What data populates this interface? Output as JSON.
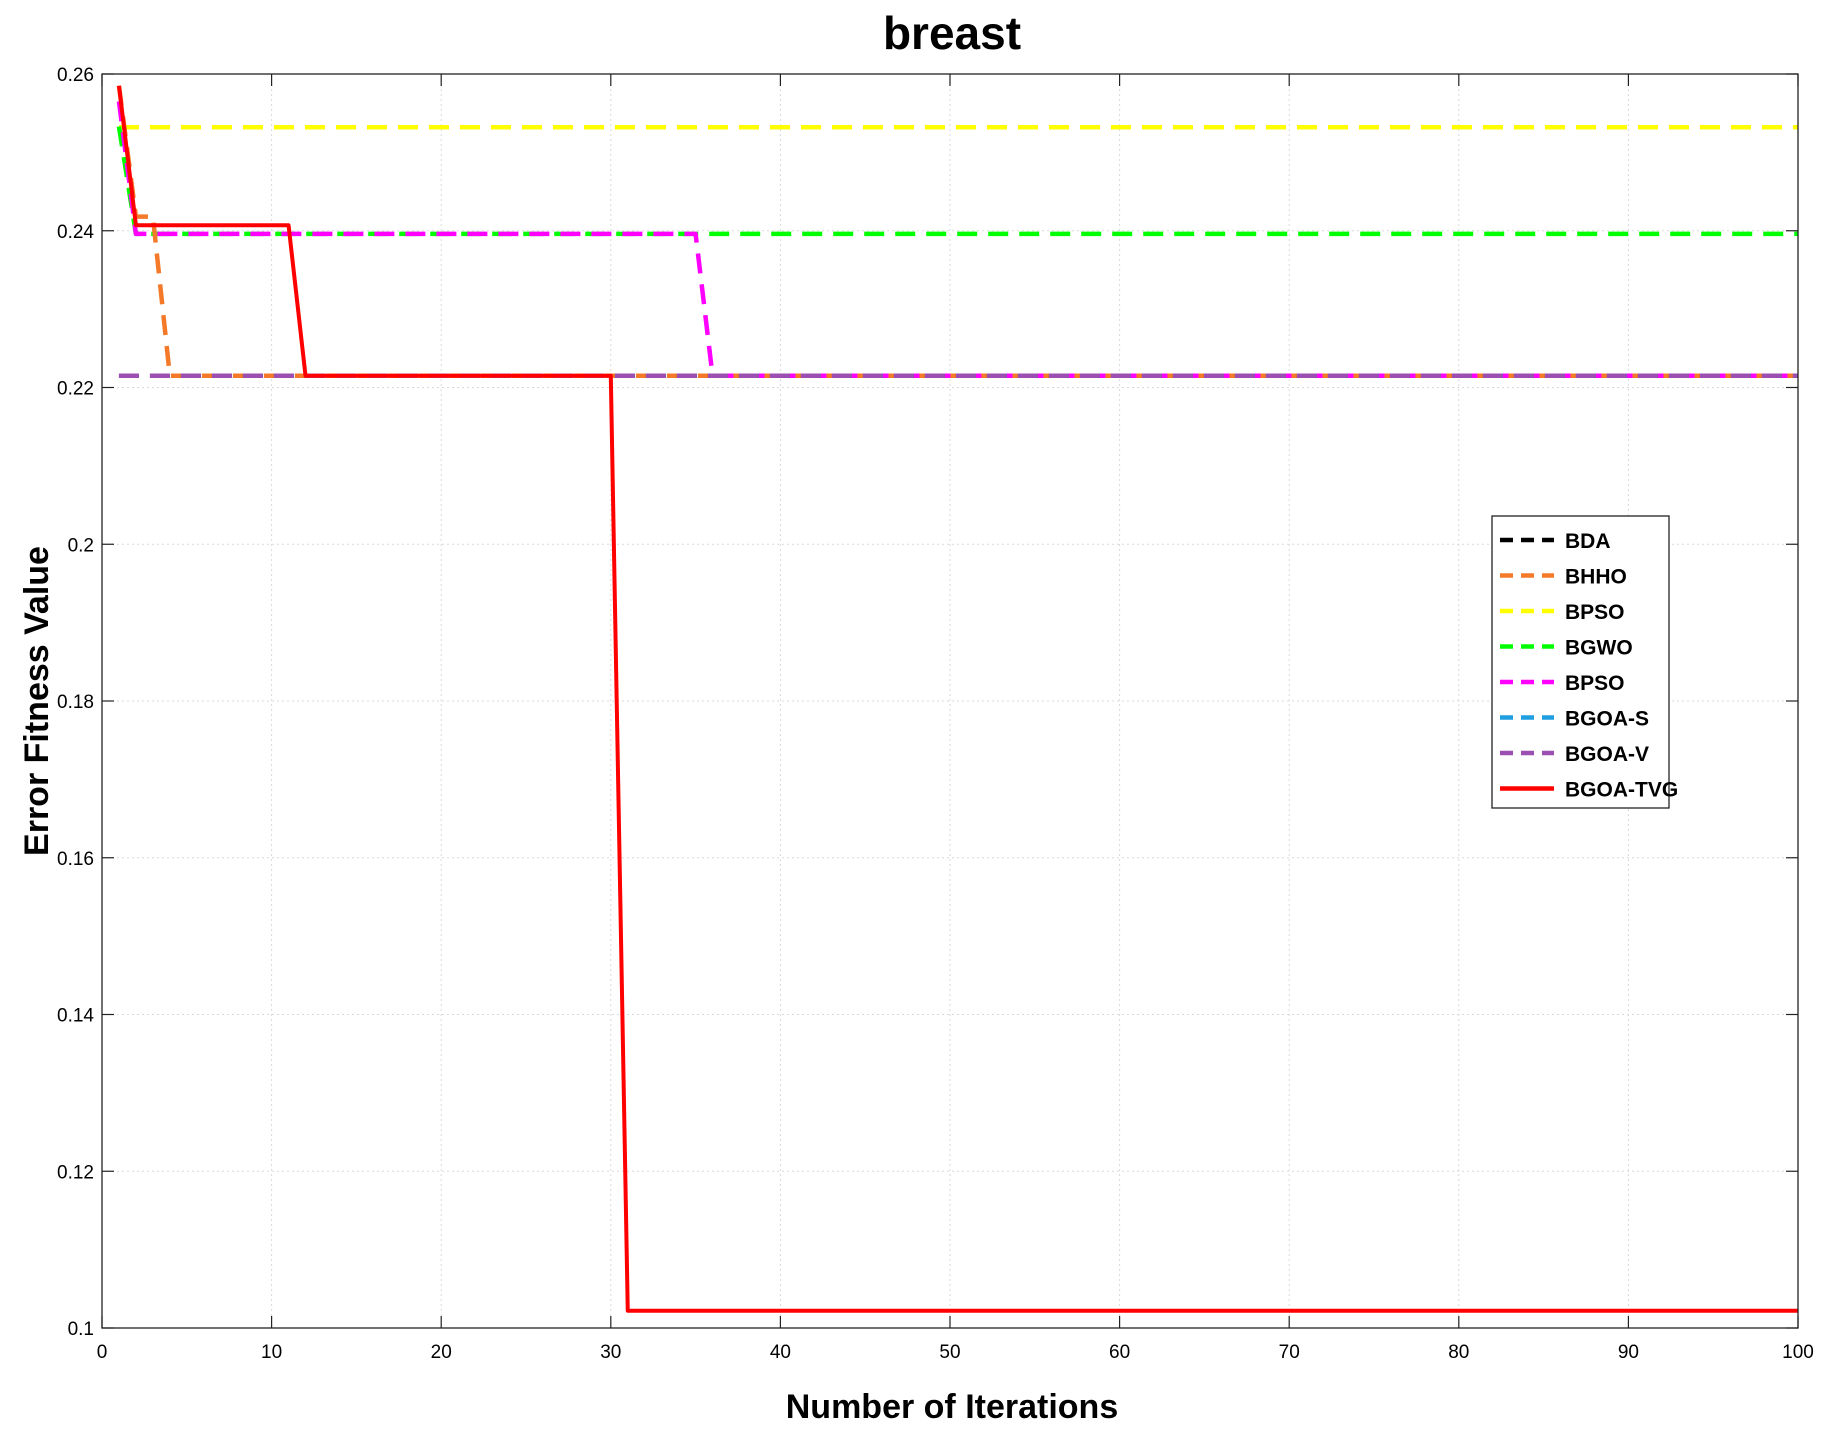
{
  "chart_data": {
    "type": "line",
    "title": "breast",
    "xlabel": "Number of Iterations",
    "ylabel": "Error Fitness Value",
    "xlim": [
      0,
      100
    ],
    "ylim": [
      0.1,
      0.26
    ],
    "xticks": [
      0,
      10,
      20,
      30,
      40,
      50,
      60,
      70,
      80,
      90,
      100
    ],
    "xtick_labels": [
      "0",
      "10",
      "20",
      "30",
      "40",
      "50",
      "60",
      "70",
      "80",
      "90",
      "100"
    ],
    "yticks": [
      0.1,
      0.12,
      0.14,
      0.16,
      0.18,
      0.2,
      0.22,
      0.24,
      0.26
    ],
    "ytick_labels": [
      "0.1",
      "0.12",
      "0.14",
      "0.16",
      "0.18",
      "0.2",
      "0.22",
      "0.24",
      "0.26"
    ],
    "grid": true,
    "legend_position": "right",
    "series": [
      {
        "name": "BDA",
        "color": "#000000",
        "style": "dashed",
        "points": [
          [
            1,
            0.2215
          ],
          [
            100,
            0.2215
          ]
        ]
      },
      {
        "name": "BHHO",
        "color": "#f47a2a",
        "style": "dashed",
        "points": [
          [
            1,
            0.2585
          ],
          [
            2,
            0.2418
          ],
          [
            3,
            0.2418
          ],
          [
            4,
            0.2215
          ],
          [
            100,
            0.2215
          ]
        ]
      },
      {
        "name": "BPSO",
        "color": "#ffff00",
        "style": "dashed",
        "points": [
          [
            1,
            0.2532
          ],
          [
            100,
            0.2532
          ]
        ]
      },
      {
        "name": "BGWO",
        "color": "#00ff00",
        "style": "dashed",
        "points": [
          [
            1,
            0.2533
          ],
          [
            2,
            0.2396
          ],
          [
            100,
            0.2396
          ]
        ]
      },
      {
        "name": "BPSO",
        "color": "#ff00ff",
        "style": "dashed",
        "points": [
          [
            1,
            0.2565
          ],
          [
            2,
            0.2396
          ],
          [
            35,
            0.2396
          ],
          [
            36,
            0.2215
          ],
          [
            100,
            0.2215
          ]
        ]
      },
      {
        "name": "BGOA-S",
        "color": "#1f9ee0",
        "style": "dashed",
        "points": [
          [
            1,
            0.2215
          ],
          [
            100,
            0.2215
          ]
        ]
      },
      {
        "name": "BGOA-V",
        "color": "#9b4fb0",
        "style": "dashed",
        "points": [
          [
            1,
            0.2215
          ],
          [
            100,
            0.2215
          ]
        ]
      },
      {
        "name": "BGOA-TVG",
        "color": "#ff0000",
        "style": "solid",
        "points": [
          [
            1,
            0.2585
          ],
          [
            2,
            0.2407
          ],
          [
            11,
            0.2407
          ],
          [
            12,
            0.2215
          ],
          [
            30,
            0.2215
          ],
          [
            31,
            0.1022
          ],
          [
            100,
            0.1022
          ]
        ]
      }
    ]
  }
}
